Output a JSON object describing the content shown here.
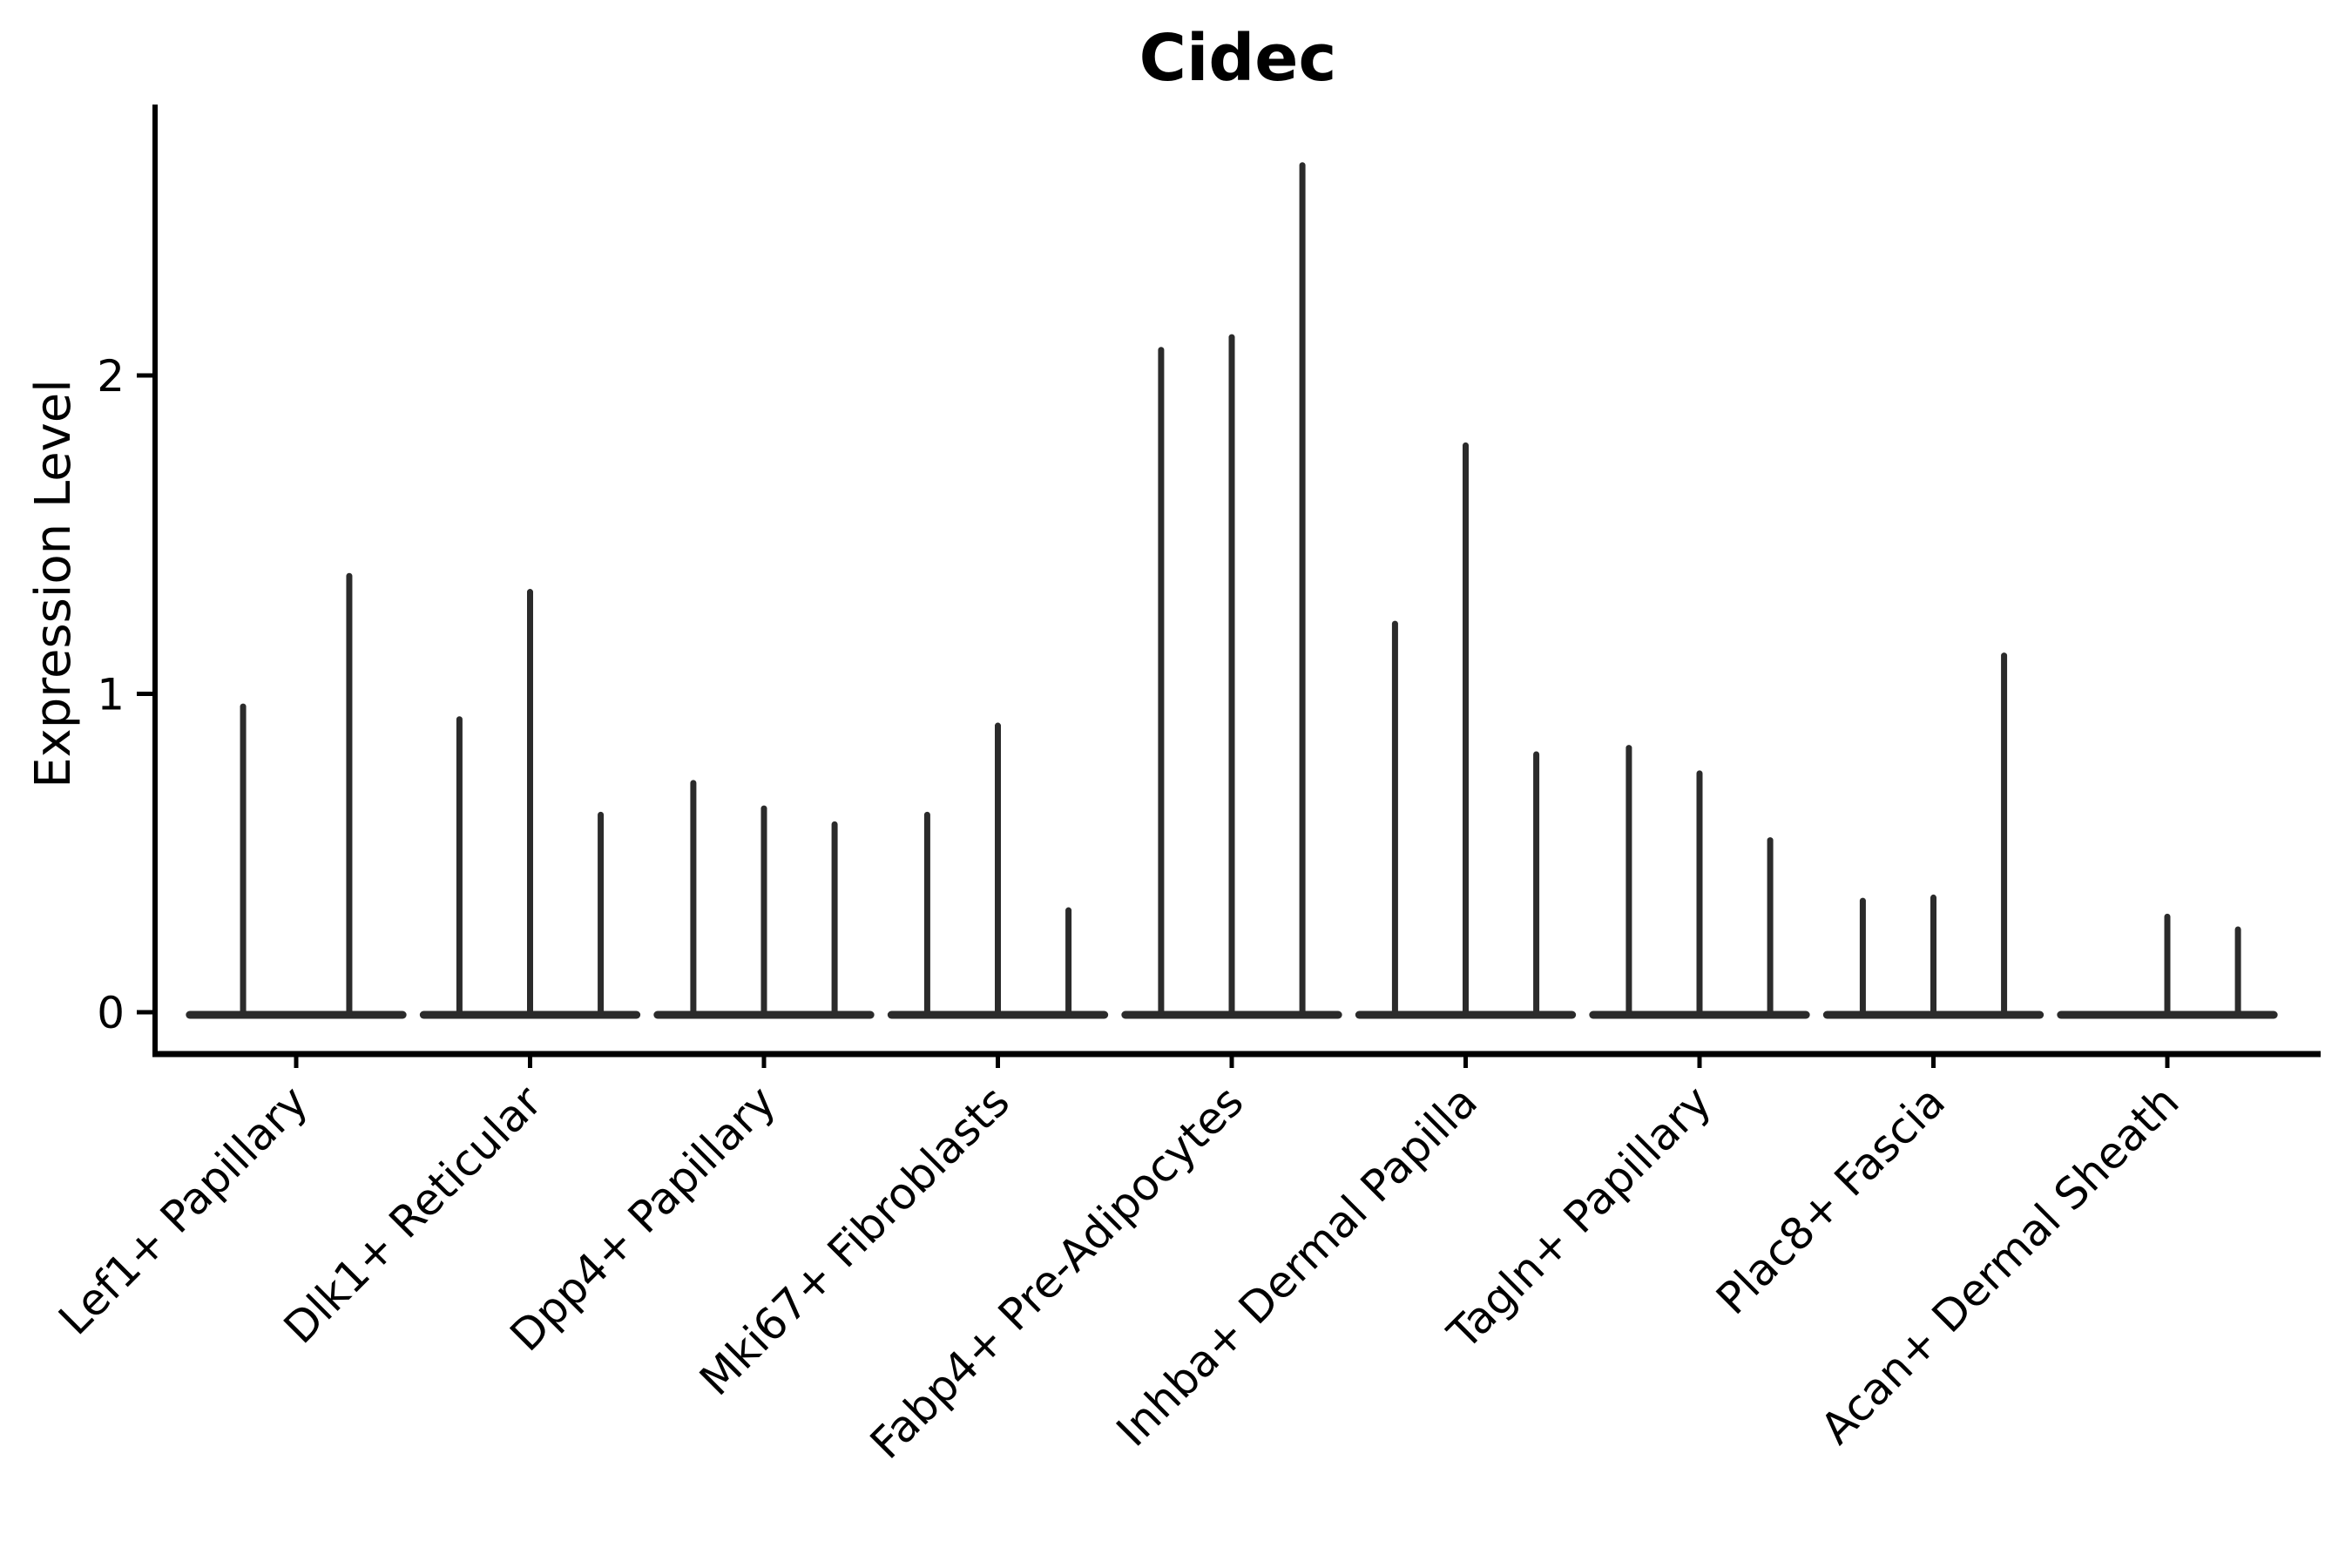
{
  "figure": {
    "title": "Cidec",
    "ylabel": "Expression Level"
  },
  "chart_data": {
    "type": "violin",
    "title": "Cidec",
    "xlabel": "",
    "ylabel": "Expression Level",
    "ylim": [
      0,
      2.85
    ],
    "yticks": [
      0,
      1,
      2
    ],
    "grid": false,
    "legend": "none",
    "x_label_rotation": 45,
    "violin_color": "#2b2b2b",
    "axis_color": "#000000",
    "base_halfwidth": 0.455,
    "categories": [
      "Lef1+ Papillary",
      "Dlk1+ Reticular",
      "Dpp4+ Papillary",
      "Mki67+ Fibroblasts",
      "Fabp4+ Pre-Adipocytes",
      "Inhba+ Dermal Papilla",
      "Tagln+ Papillary",
      "Plac8+ Fascia",
      "Acan+ Dermal Sheath"
    ],
    "series": [
      {
        "category": "Lef1+ Papillary",
        "violins": [
          {
            "dx": -0.227,
            "max": 0.96
          },
          {
            "dx": 0.227,
            "max": 1.37
          }
        ]
      },
      {
        "category": "Dlk1+ Reticular",
        "violins": [
          {
            "dx": -0.302,
            "max": 0.92
          },
          {
            "dx": 0,
            "max": 1.32
          },
          {
            "dx": 0.302,
            "max": 0.62
          }
        ]
      },
      {
        "category": "Dpp4+ Papillary",
        "violins": [
          {
            "dx": -0.302,
            "max": 0.72
          },
          {
            "dx": 0,
            "max": 0.64
          },
          {
            "dx": 0.302,
            "max": 0.59
          }
        ]
      },
      {
        "category": "Mki67+ Fibroblasts",
        "violins": [
          {
            "dx": -0.302,
            "max": 0.62
          },
          {
            "dx": 0,
            "max": 0.9
          },
          {
            "dx": 0.302,
            "max": 0.32
          }
        ]
      },
      {
        "category": "Fabp4+ Pre-Adipocytes",
        "violins": [
          {
            "dx": -0.302,
            "max": 2.08
          },
          {
            "dx": 0,
            "max": 2.12
          },
          {
            "dx": 0.302,
            "max": 2.66
          }
        ]
      },
      {
        "category": "Inhba+ Dermal Papilla",
        "violins": [
          {
            "dx": -0.302,
            "max": 1.22
          },
          {
            "dx": 0,
            "max": 1.78
          },
          {
            "dx": 0.302,
            "max": 0.81
          }
        ]
      },
      {
        "category": "Tagln+ Papillary",
        "violins": [
          {
            "dx": -0.302,
            "max": 0.83
          },
          {
            "dx": 0,
            "max": 0.75
          },
          {
            "dx": 0.302,
            "max": 0.54
          }
        ]
      },
      {
        "category": "Plac8+ Fascia",
        "violins": [
          {
            "dx": -0.302,
            "max": 0.35
          },
          {
            "dx": 0,
            "max": 0.36
          },
          {
            "dx": 0.302,
            "max": 1.12
          }
        ]
      },
      {
        "category": "Acan+ Dermal Sheath",
        "violins": [
          {
            "dx": 0,
            "max": 0.3
          },
          {
            "dx": 0.302,
            "max": 0.26
          }
        ]
      }
    ]
  }
}
